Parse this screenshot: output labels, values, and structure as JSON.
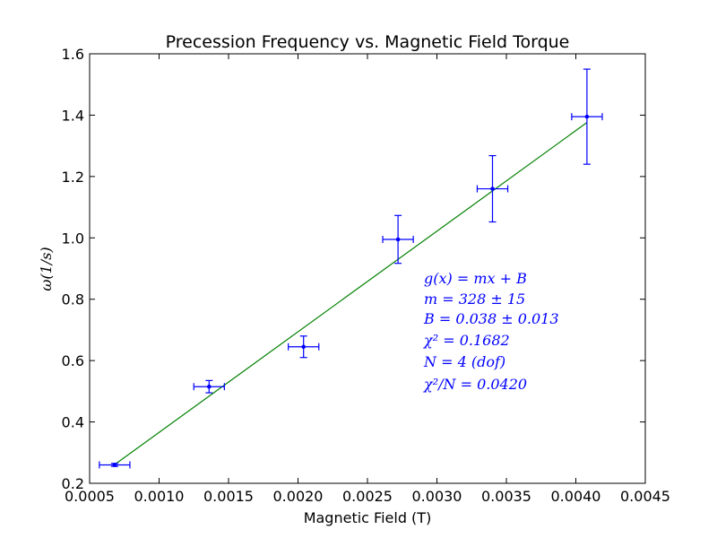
{
  "chart_data": {
    "type": "scatter",
    "title": "Precession Frequency vs. Magnetic Field Torque",
    "xlabel": "Magnetic Field (T)",
    "ylabel": "ω(1/s)",
    "xlim": [
      0.0005,
      0.0045
    ],
    "ylim": [
      0.2,
      1.6
    ],
    "xticks": [
      "0.0005",
      "0.0010",
      "0.0015",
      "0.0020",
      "0.0025",
      "0.0030",
      "0.0035",
      "0.0040",
      "0.0045"
    ],
    "yticks": [
      "0.2",
      "0.4",
      "0.6",
      "0.8",
      "1.0",
      "1.2",
      "1.4",
      "1.6"
    ],
    "grid": false,
    "series": [
      {
        "kind": "errorbar",
        "color": "#0000ff",
        "points": [
          {
            "x": 0.00068,
            "y": 0.26,
            "xerr": 0.00011,
            "yerr": 0.005
          },
          {
            "x": 0.00136,
            "y": 0.515,
            "xerr": 0.00011,
            "yerr": 0.02
          },
          {
            "x": 0.00204,
            "y": 0.645,
            "xerr": 0.00011,
            "yerr": 0.035
          },
          {
            "x": 0.00272,
            "y": 0.995,
            "xerr": 0.00011,
            "yerr": 0.078
          },
          {
            "x": 0.0034,
            "y": 1.16,
            "xerr": 0.00011,
            "yerr": 0.108
          },
          {
            "x": 0.00408,
            "y": 1.395,
            "xerr": 0.00011,
            "yerr": 0.155
          }
        ]
      },
      {
        "kind": "line",
        "color": "#008000",
        "x": [
          0.00068,
          0.00408
        ],
        "y": [
          0.261,
          1.376
        ]
      }
    ],
    "annotations": [
      "g(x) = mx + B",
      "m = 328 ± 15",
      "B = 0.038 ± 0.013",
      "χ² = 0.1682",
      "N = 4 (dof)",
      "χ²/N = 0.0420"
    ]
  }
}
